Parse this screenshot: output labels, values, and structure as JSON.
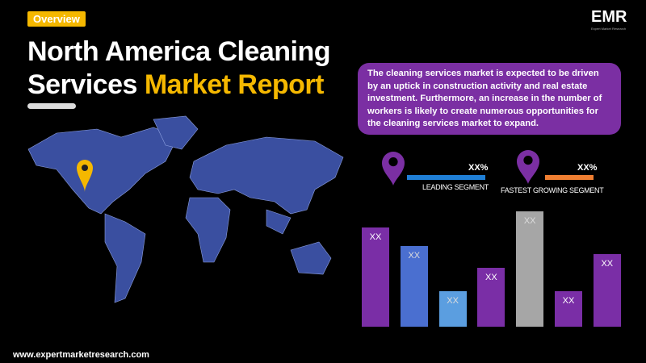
{
  "badge": "Overview",
  "title": {
    "line1": "North America Cleaning",
    "line2_white": "Services ",
    "line2_highlight": "Market Report"
  },
  "logo": {
    "text": "EMR",
    "tagline": "Expert Market Research"
  },
  "description": "The cleaning services market is expected  to be driven by an uptick in construction activity and real estate investment. Furthermore, an increase in the number of workers is likely to create numerous opportunities for the cleaning services market to expand.",
  "segments": [
    {
      "value": "XX%",
      "label": "LEADING SEGMENT",
      "color": "#1f7fd6"
    },
    {
      "value": "XX%",
      "label": "FASTEST GROWING SEGMENT",
      "color": "#f07f32"
    }
  ],
  "bars": [
    {
      "label": "XX",
      "level": 0.86,
      "color": "#7a2ea6"
    },
    {
      "label": "XX",
      "level": 0.7,
      "color": "#4a6fd0"
    },
    {
      "label": "XX",
      "level": 0.31,
      "color": "#5b9ee0"
    },
    {
      "label": "XX",
      "level": 0.51,
      "color": "#7a2ea6"
    },
    {
      "label": "XX",
      "level": 1.0,
      "color": "#a6a6a6"
    },
    {
      "label": "XX",
      "level": 0.31,
      "color": "#7a2ea6"
    },
    {
      "label": "XX",
      "level": 0.63,
      "color": "#7a2ea6"
    }
  ],
  "colors": {
    "accent": "#f5b800",
    "purple": "#7b2fa3",
    "map": "#3a4fa0"
  },
  "url": "www.expertmarketresearch.com"
}
